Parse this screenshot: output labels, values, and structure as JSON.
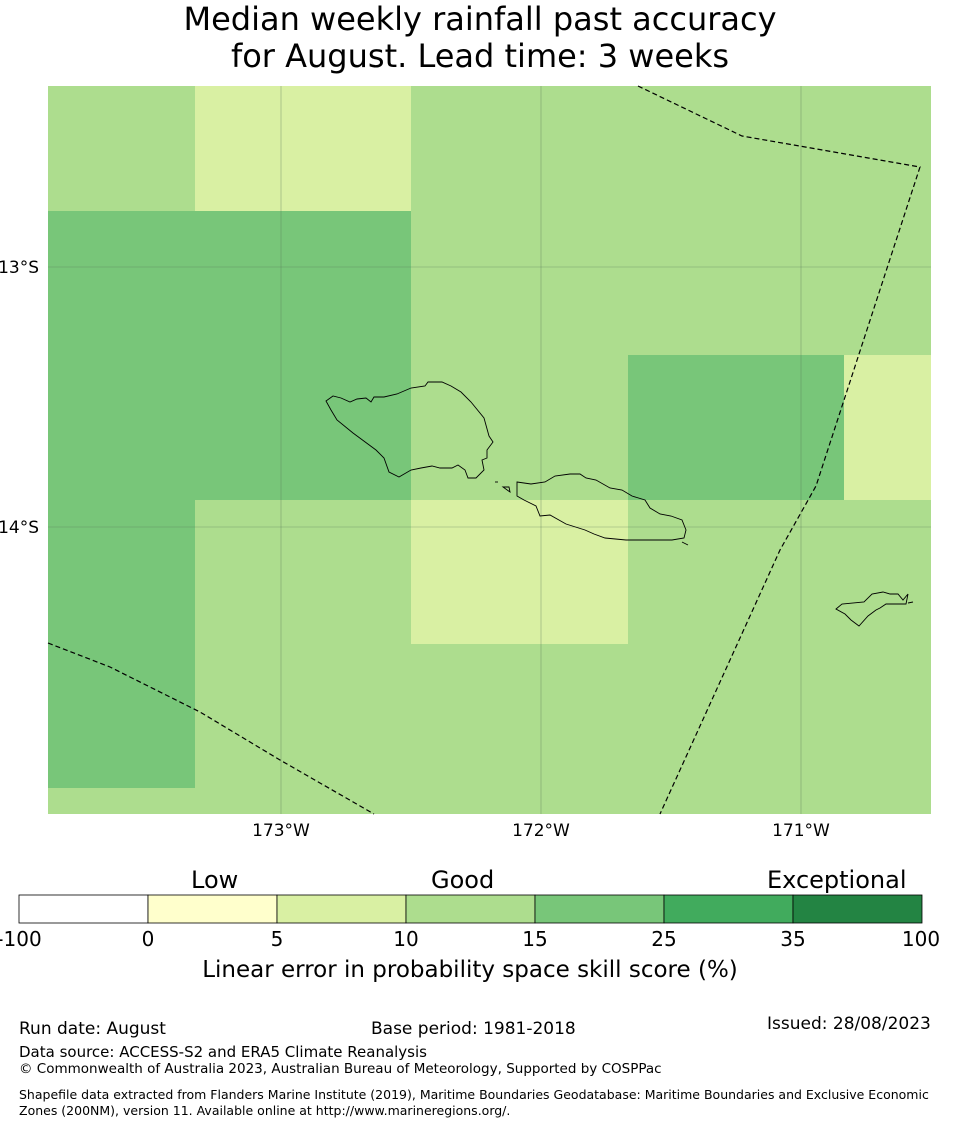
{
  "title": {
    "line1": "Median weekly rainfall past accuracy",
    "line2": "for August. Lead time: 3 weeks"
  },
  "map": {
    "lat_labels": [
      "13°S",
      "14°S"
    ],
    "lon_labels": [
      "173°W",
      "172°W",
      "171°W"
    ],
    "colors": {
      "c5_10": "#d9f0a3",
      "c10_15": "#addd8e",
      "c15_25": "#78c679"
    }
  },
  "colorbar": {
    "categories": [
      "Low",
      "Good",
      "Exceptional"
    ],
    "ticks": [
      "-100",
      "0",
      "5",
      "10",
      "15",
      "25",
      "35",
      "100"
    ],
    "colors": [
      "#ffffff",
      "#ffffcc",
      "#d9f0a3",
      "#addd8e",
      "#78c679",
      "#41ab5d",
      "#238443"
    ],
    "label": "Linear error in probability space skill score (%)"
  },
  "footer": {
    "run_date": "Run date: August",
    "base_period": "Base period: 1981-2018",
    "issued": "Issued: 28/08/2023",
    "data_source": "Data source: ACCESS-S2 and ERA5 Climate Reanalysis",
    "copyright": "© Commonwealth of Australia 2023, Australian Bureau of Meteorology, Supported by COSPPac",
    "shapefile": "Shapefile data extracted from Flanders Marine Institute (2019), Maritime Boundaries Geodatabase: Maritime Boundaries and Exclusive Economic Zones (200NM), version 11. Available online at http://www.marineregions.org/."
  }
}
